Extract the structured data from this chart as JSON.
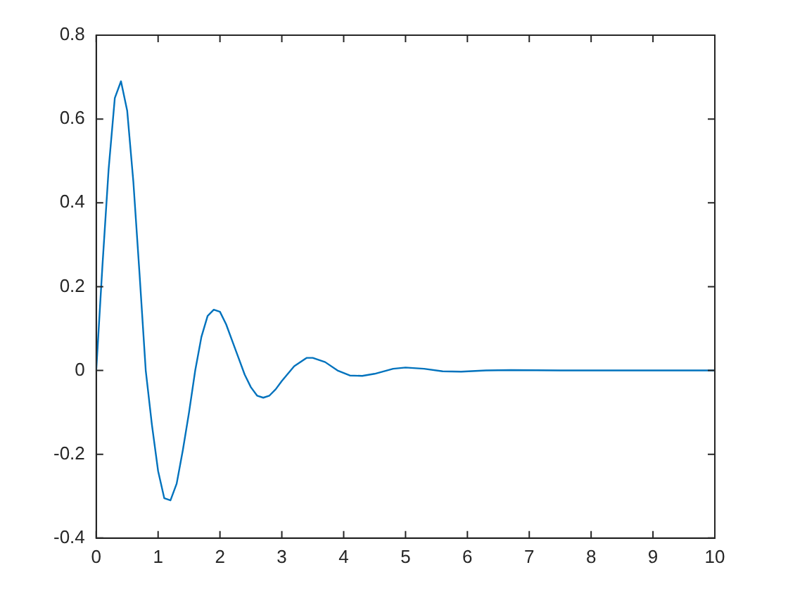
{
  "chart_data": {
    "type": "line",
    "x": [
      0,
      0.1,
      0.2,
      0.3,
      0.4,
      0.5,
      0.6,
      0.7,
      0.8,
      0.9,
      1.0,
      1.1,
      1.2,
      1.3,
      1.4,
      1.5,
      1.6,
      1.7,
      1.8,
      1.9,
      2.0,
      2.1,
      2.2,
      2.3,
      2.4,
      2.5,
      2.6,
      2.7,
      2.8,
      2.9,
      3.0,
      3.2,
      3.4,
      3.5,
      3.7,
      3.9,
      4.1,
      4.3,
      4.5,
      4.8,
      5.0,
      5.3,
      5.6,
      5.9,
      6.3,
      6.7,
      7.5,
      10
    ],
    "series": [
      {
        "color": "#0072bd",
        "values": [
          0,
          0.25,
          0.48,
          0.65,
          0.69,
          0.62,
          0.45,
          0.23,
          0.0,
          -0.13,
          -0.24,
          -0.305,
          -0.31,
          -0.27,
          -0.19,
          -0.1,
          0.0,
          0.08,
          0.13,
          0.145,
          0.14,
          0.11,
          0.07,
          0.03,
          -0.01,
          -0.04,
          -0.06,
          -0.065,
          -0.06,
          -0.045,
          -0.025,
          0.01,
          0.03,
          0.03,
          0.02,
          0.0,
          -0.012,
          -0.013,
          -0.008,
          0.004,
          0.007,
          0.004,
          -0.002,
          -0.003,
          0,
          0.001,
          0,
          0
        ]
      }
    ],
    "xlim": [
      0,
      10
    ],
    "xticks": [
      0,
      1,
      2,
      3,
      4,
      5,
      6,
      7,
      8,
      9,
      10
    ],
    "ylim": [
      -0.4,
      0.8
    ],
    "yticks": [
      -0.4,
      -0.2,
      0,
      0.2,
      0.4,
      0.6,
      0.8
    ],
    "grid": false,
    "legend": false,
    "marker": "none",
    "line_style": "solid"
  }
}
